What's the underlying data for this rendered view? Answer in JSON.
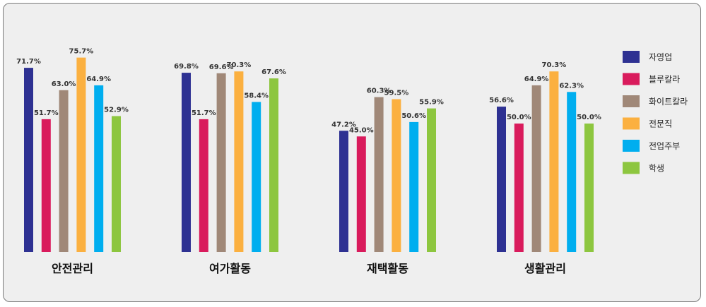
{
  "chart_data": {
    "type": "bar",
    "categories": [
      "안전관리",
      "여가활동",
      "재택활동",
      "생활관리"
    ],
    "series": [
      {
        "name": "자영업",
        "color": "#2e3192",
        "values": [
          71.7,
          69.8,
          47.2,
          56.6
        ]
      },
      {
        "name": "블루칼라",
        "color": "#d91b5c",
        "values": [
          51.7,
          51.7,
          45.0,
          50.0
        ]
      },
      {
        "name": "화이트칼라",
        "color": "#a08878",
        "values": [
          63.0,
          69.6,
          60.3,
          64.9
        ]
      },
      {
        "name": "전문직",
        "color": "#fbb040",
        "values": [
          75.7,
          70.3,
          59.5,
          70.3
        ]
      },
      {
        "name": "전업주부",
        "color": "#00aeef",
        "values": [
          64.9,
          58.4,
          50.6,
          62.3
        ]
      },
      {
        "name": "학생",
        "color": "#8dc63f",
        "values": [
          52.9,
          67.6,
          55.9,
          50.0
        ]
      }
    ],
    "value_labels": [
      [
        "71.7%",
        "69.8%",
        "47.2%",
        "56.6%"
      ],
      [
        "51.7%",
        "51.7%",
        "45.0%",
        "50.0%"
      ],
      [
        "63.0%",
        "69.6%",
        "60.3%",
        "64.9%"
      ],
      [
        "75.7%",
        "70.3%",
        "59.5%",
        "70.3%"
      ],
      [
        "64.9%",
        "58.4%",
        "50.6%",
        "62.3%"
      ],
      [
        "52.9%",
        "67.6%",
        "55.9%",
        "50.0%"
      ]
    ],
    "ylim": [
      0,
      80
    ],
    "grid": false,
    "legend_position": "right"
  }
}
